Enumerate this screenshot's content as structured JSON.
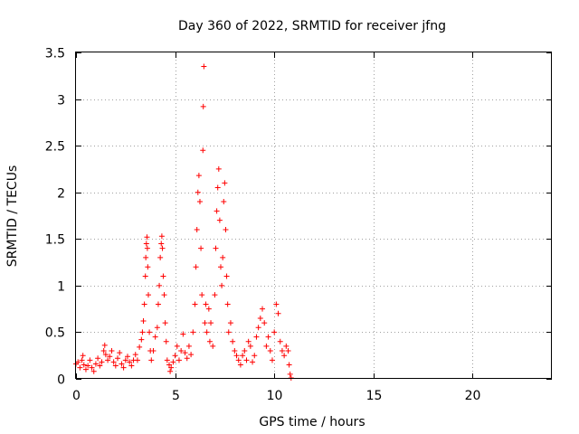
{
  "chart_data": {
    "type": "scatter",
    "title": "Day 360 of 2022, SRMTID for receiver jfng",
    "xlabel": "GPS time / hours",
    "ylabel": "SRMTID / TECUs",
    "xlim": [
      0,
      24
    ],
    "ylim": [
      0,
      3.5
    ],
    "xticks": [
      0,
      5,
      10,
      15,
      20
    ],
    "xtick_labels": [
      "0",
      "5",
      "10",
      "15",
      "20"
    ],
    "yticks": [
      0,
      0.5,
      1,
      1.5,
      2,
      2.5,
      3,
      3.5
    ],
    "ytick_labels": [
      "0",
      "0.5",
      "1",
      "1.5",
      "2",
      "2.5",
      "3",
      "3.5"
    ],
    "grid": true,
    "marker": "+",
    "color": "#ff0000",
    "series": [
      {
        "name": "SRMTID",
        "points": [
          [
            0.0,
            0.16
          ],
          [
            0.1,
            0.18
          ],
          [
            0.2,
            0.12
          ],
          [
            0.3,
            0.2
          ],
          [
            0.35,
            0.25
          ],
          [
            0.4,
            0.15
          ],
          [
            0.5,
            0.1
          ],
          [
            0.6,
            0.14
          ],
          [
            0.7,
            0.2
          ],
          [
            0.8,
            0.12
          ],
          [
            0.9,
            0.08
          ],
          [
            1.0,
            0.16
          ],
          [
            1.1,
            0.22
          ],
          [
            1.2,
            0.14
          ],
          [
            1.3,
            0.18
          ],
          [
            1.4,
            0.3
          ],
          [
            1.45,
            0.36
          ],
          [
            1.5,
            0.26
          ],
          [
            1.6,
            0.2
          ],
          [
            1.7,
            0.24
          ],
          [
            1.8,
            0.3
          ],
          [
            1.9,
            0.18
          ],
          [
            2.0,
            0.14
          ],
          [
            2.1,
            0.22
          ],
          [
            2.2,
            0.28
          ],
          [
            2.3,
            0.16
          ],
          [
            2.4,
            0.12
          ],
          [
            2.5,
            0.2
          ],
          [
            2.6,
            0.24
          ],
          [
            2.7,
            0.18
          ],
          [
            2.8,
            0.14
          ],
          [
            2.9,
            0.2
          ],
          [
            3.0,
            0.26
          ],
          [
            3.1,
            0.2
          ],
          [
            3.2,
            0.34
          ],
          [
            3.3,
            0.42
          ],
          [
            3.35,
            0.5
          ],
          [
            3.4,
            0.62
          ],
          [
            3.45,
            0.8
          ],
          [
            3.5,
            1.1
          ],
          [
            3.52,
            1.3
          ],
          [
            3.55,
            1.45
          ],
          [
            3.58,
            1.52
          ],
          [
            3.6,
            1.4
          ],
          [
            3.62,
            1.2
          ],
          [
            3.65,
            0.9
          ],
          [
            3.7,
            0.5
          ],
          [
            3.75,
            0.3
          ],
          [
            3.8,
            0.2
          ],
          [
            3.9,
            0.3
          ],
          [
            4.0,
            0.45
          ],
          [
            4.1,
            0.55
          ],
          [
            4.15,
            0.8
          ],
          [
            4.2,
            1.0
          ],
          [
            4.25,
            1.3
          ],
          [
            4.3,
            1.45
          ],
          [
            4.33,
            1.53
          ],
          [
            4.36,
            1.4
          ],
          [
            4.4,
            1.1
          ],
          [
            4.45,
            0.9
          ],
          [
            4.5,
            0.6
          ],
          [
            4.55,
            0.4
          ],
          [
            4.6,
            0.2
          ],
          [
            4.7,
            0.15
          ],
          [
            4.75,
            0.08
          ],
          [
            4.8,
            0.12
          ],
          [
            4.9,
            0.18
          ],
          [
            5.0,
            0.25
          ],
          [
            5.1,
            0.35
          ],
          [
            5.2,
            0.2
          ],
          [
            5.3,
            0.3
          ],
          [
            5.4,
            0.48
          ],
          [
            5.5,
            0.28
          ],
          [
            5.6,
            0.22
          ],
          [
            5.7,
            0.35
          ],
          [
            5.8,
            0.26
          ],
          [
            5.9,
            0.5
          ],
          [
            6.0,
            0.8
          ],
          [
            6.05,
            1.2
          ],
          [
            6.1,
            1.6
          ],
          [
            6.15,
            2.0
          ],
          [
            6.2,
            2.18
          ],
          [
            6.25,
            1.9
          ],
          [
            6.3,
            1.4
          ],
          [
            6.35,
            0.9
          ],
          [
            6.4,
            2.45
          ],
          [
            6.42,
            2.92
          ],
          [
            6.45,
            3.35
          ],
          [
            6.5,
            0.6
          ],
          [
            6.55,
            0.8
          ],
          [
            6.6,
            0.5
          ],
          [
            6.7,
            0.75
          ],
          [
            6.75,
            0.4
          ],
          [
            6.8,
            0.6
          ],
          [
            6.9,
            0.35
          ],
          [
            7.0,
            0.9
          ],
          [
            7.05,
            1.4
          ],
          [
            7.1,
            1.8
          ],
          [
            7.15,
            2.05
          ],
          [
            7.2,
            2.25
          ],
          [
            7.25,
            1.7
          ],
          [
            7.3,
            1.2
          ],
          [
            7.35,
            1.0
          ],
          [
            7.4,
            1.3
          ],
          [
            7.45,
            1.9
          ],
          [
            7.5,
            2.1
          ],
          [
            7.55,
            1.6
          ],
          [
            7.6,
            1.1
          ],
          [
            7.65,
            0.8
          ],
          [
            7.7,
            0.5
          ],
          [
            7.8,
            0.6
          ],
          [
            7.9,
            0.4
          ],
          [
            8.0,
            0.3
          ],
          [
            8.1,
            0.25
          ],
          [
            8.2,
            0.2
          ],
          [
            8.3,
            0.15
          ],
          [
            8.4,
            0.25
          ],
          [
            8.5,
            0.3
          ],
          [
            8.6,
            0.2
          ],
          [
            8.7,
            0.4
          ],
          [
            8.8,
            0.35
          ],
          [
            8.9,
            0.18
          ],
          [
            9.0,
            0.25
          ],
          [
            9.1,
            0.45
          ],
          [
            9.2,
            0.55
          ],
          [
            9.3,
            0.65
          ],
          [
            9.4,
            0.75
          ],
          [
            9.5,
            0.6
          ],
          [
            9.6,
            0.35
          ],
          [
            9.7,
            0.45
          ],
          [
            9.8,
            0.3
          ],
          [
            9.9,
            0.2
          ],
          [
            10.0,
            0.5
          ],
          [
            10.1,
            0.8
          ],
          [
            10.2,
            0.7
          ],
          [
            10.3,
            0.4
          ],
          [
            10.4,
            0.3
          ],
          [
            10.5,
            0.25
          ],
          [
            10.6,
            0.35
          ],
          [
            10.7,
            0.3
          ],
          [
            10.75,
            0.15
          ],
          [
            10.8,
            0.05
          ],
          [
            10.85,
            0.01
          ]
        ]
      }
    ]
  }
}
